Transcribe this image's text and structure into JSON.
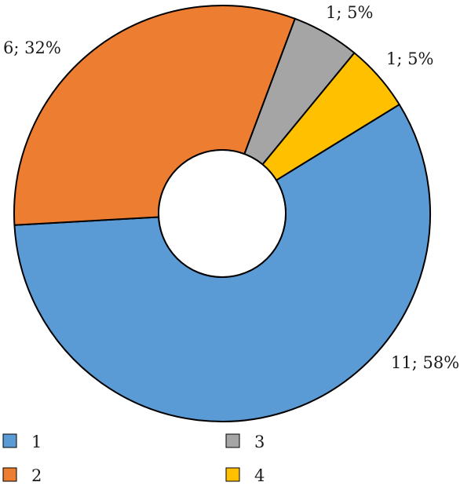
{
  "chart_data": {
    "type": "donut",
    "categories": [
      "1",
      "2",
      "3",
      "4"
    ],
    "values": [
      11,
      6,
      1,
      1
    ],
    "percents": [
      "58%",
      "32%",
      "5%",
      "5%"
    ],
    "data_labels": [
      "11; 58%",
      "6; 32%",
      "1; 5%",
      "1; 5%"
    ],
    "colors": [
      "#5b9bd5",
      "#ed7d31",
      "#a5a5a5",
      "#ffc000"
    ],
    "legend": {
      "placement": "bottom",
      "entries": [
        "1",
        "2",
        "3",
        "4"
      ]
    }
  }
}
